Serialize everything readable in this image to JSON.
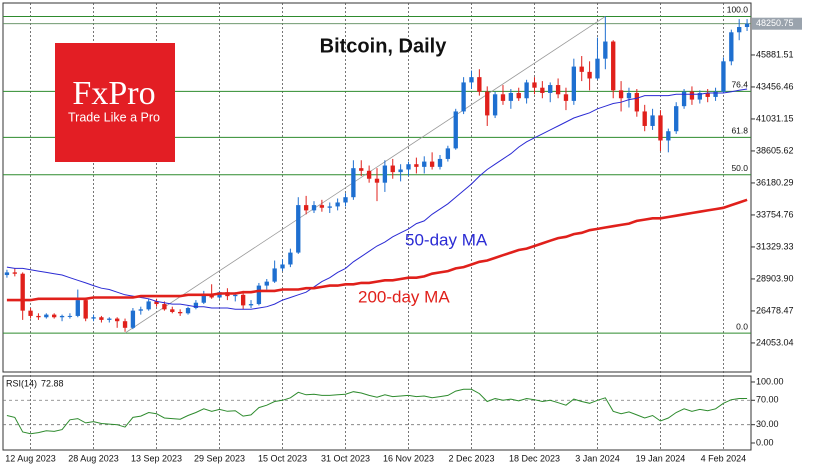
{
  "chart_data": {
    "type": "candlestick",
    "title": "Bitcoin, Daily",
    "logo": {
      "brand": "FxPro",
      "slogan": "Trade Like a Pro"
    },
    "up_color": "#1e6fd0",
    "down_color": "#e0201b",
    "ylim": [
      21850,
      49820
    ],
    "yticks": [
      45881.51,
      43456.46,
      41031.15,
      38605.62,
      36180.29,
      33754.76,
      31329.33,
      {
        "value": 28903.9,
        "label": "28903.90"
      },
      26478.47,
      24053.04
    ],
    "categories": [
      null,
      null,
      null,
      "12 Aug 2023",
      null,
      null,
      null,
      null,
      null,
      null,
      null,
      "28 Aug 2023",
      null,
      null,
      null,
      null,
      null,
      null,
      null,
      "13 Sep 2023",
      null,
      null,
      null,
      null,
      null,
      null,
      null,
      "29 Sep 2023",
      null,
      null,
      null,
      null,
      null,
      null,
      null,
      "15 Oct 2023",
      null,
      null,
      null,
      null,
      null,
      null,
      null,
      "31 Oct 2023",
      null,
      null,
      null,
      null,
      null,
      null,
      null,
      "16 Nov 2023",
      null,
      null,
      null,
      null,
      null,
      null,
      null,
      "2 Dec 2023",
      null,
      null,
      null,
      null,
      null,
      null,
      null,
      "18 Dec 2023",
      null,
      null,
      null,
      null,
      null,
      null,
      null,
      "3 Jan 2024",
      null,
      null,
      null,
      null,
      null,
      null,
      null,
      "19 Jan 2024",
      null,
      null,
      null,
      null,
      null,
      null,
      null,
      "4 Feb 2024",
      null,
      null,
      null
    ],
    "open": [
      29200,
      29400,
      29300,
      26500,
      26100,
      26000,
      26200,
      26000,
      26100,
      26100,
      27300,
      25900,
      26000,
      25800,
      25900,
      25700,
      25200,
      26500,
      26600,
      27200,
      27000,
      26600,
      26400,
      26300,
      26700,
      27100,
      27800,
      27500,
      27900,
      27600,
      27700,
      26900,
      27000,
      28400,
      28700,
      29700,
      30000,
      30900,
      34500,
      34100,
      34500,
      34300,
      34400,
      34700,
      35100,
      37300,
      37100,
      36500,
      36200,
      37500,
      37000,
      37200,
      37600,
      37400,
      37800,
      37400,
      38000,
      38800,
      41600,
      43800,
      44200,
      43100,
      41300,
      42900,
      42400,
      43000,
      42600,
      43800,
      43400,
      43000,
      43600,
      42900,
      42400,
      45000,
      44600,
      44100,
      45600,
      46900,
      43200,
      42600,
      43000,
      41600,
      40500,
      41300,
      39400,
      40100,
      42000,
      43100,
      42500,
      43000,
      42700,
      43100,
      45400,
      47600,
      48000
    ],
    "high": [
      29600,
      29700,
      29400,
      26700,
      26300,
      26300,
      26300,
      26200,
      26300,
      28100,
      27500,
      26200,
      26100,
      26000,
      26000,
      25900,
      26700,
      26800,
      27400,
      27400,
      27200,
      26800,
      26600,
      26800,
      27300,
      28000,
      28500,
      28000,
      28200,
      27900,
      28000,
      27300,
      28600,
      28900,
      30300,
      30400,
      31200,
      35100,
      35200,
      34800,
      34900,
      34700,
      35000,
      35400,
      37900,
      37900,
      37500,
      37300,
      37900,
      38000,
      37600,
      37800,
      38100,
      38200,
      38500,
      38300,
      39000,
      41800,
      44200,
      44700,
      44800,
      43500,
      43100,
      43600,
      43300,
      43400,
      44000,
      44200,
      43900,
      43800,
      44100,
      43400,
      45600,
      45800,
      45400,
      47200,
      48800,
      47000,
      43900,
      43400,
      43300,
      42100,
      41800,
      41700,
      40300,
      42300,
      43300,
      43500,
      43200,
      43300,
      43400,
      45700,
      47800,
      48600,
      48600
    ],
    "low": [
      29000,
      29100,
      25800,
      25900,
      25800,
      25900,
      25900,
      25700,
      25900,
      26000,
      25700,
      25700,
      25600,
      25600,
      25200,
      24900,
      25100,
      26200,
      26500,
      26800,
      26500,
      26300,
      26100,
      26200,
      26600,
      27000,
      27400,
      27400,
      27300,
      27200,
      26600,
      26700,
      26900,
      28100,
      28600,
      29500,
      29800,
      30800,
      33800,
      33900,
      34000,
      33900,
      34100,
      34400,
      34900,
      36700,
      36200,
      34800,
      35500,
      36500,
      36300,
      36700,
      36900,
      36900,
      37200,
      37200,
      37800,
      38700,
      41400,
      43300,
      42800,
      40500,
      41100,
      42100,
      41800,
      42400,
      42200,
      42900,
      42600,
      42300,
      42600,
      41700,
      42100,
      43900,
      43200,
      44000,
      44800,
      42600,
      41600,
      41900,
      41200,
      40100,
      40200,
      38600,
      38500,
      39900,
      41800,
      42100,
      42200,
      42300,
      42400,
      43000,
      45100,
      47000,
      47700
    ],
    "close": [
      29400,
      29300,
      26500,
      26100,
      26000,
      26200,
      26000,
      26100,
      26100,
      27300,
      25900,
      26000,
      25800,
      25900,
      25700,
      25200,
      26500,
      26600,
      27200,
      27000,
      26600,
      26400,
      26300,
      26700,
      27100,
      27800,
      27500,
      27900,
      27600,
      27700,
      26900,
      27000,
      28400,
      28700,
      29700,
      30000,
      30900,
      34500,
      34100,
      34500,
      34300,
      34400,
      34700,
      35100,
      37300,
      37100,
      36500,
      36200,
      37500,
      37000,
      37200,
      37600,
      37400,
      37800,
      37400,
      38000,
      38800,
      41600,
      43800,
      44200,
      43100,
      41300,
      42900,
      42400,
      43000,
      42600,
      43800,
      43400,
      43000,
      43600,
      42900,
      42400,
      45000,
      44600,
      44100,
      45600,
      46900,
      43200,
      42600,
      43000,
      41600,
      40500,
      41300,
      39400,
      40100,
      42000,
      43100,
      42500,
      43000,
      42700,
      43100,
      45400,
      47600,
      48000,
      48250.75
    ],
    "series": [
      {
        "name": "50-day MA",
        "color": "#2b2bd4",
        "values": [
          29800,
          29700,
          29700,
          29600,
          29500,
          29400,
          29300,
          29200,
          29000,
          28800,
          28600,
          28400,
          28200,
          28100,
          27900,
          27700,
          27600,
          27500,
          27400,
          27200,
          27100,
          27000,
          27000,
          26900,
          26800,
          26800,
          26700,
          26700,
          26700,
          26600,
          26600,
          26600,
          26700,
          26800,
          27000,
          27300,
          27500,
          27700,
          27900,
          28300,
          28700,
          29000,
          29400,
          29700,
          30200,
          30600,
          31000,
          31400,
          31700,
          32100,
          32400,
          32700,
          33100,
          33300,
          33800,
          34200,
          34600,
          35100,
          35600,
          36100,
          36700,
          37200,
          37600,
          38000,
          38400,
          38900,
          39300,
          39600,
          39900,
          40200,
          40500,
          40800,
          41100,
          41300,
          41500,
          41800,
          42000,
          42200,
          42300,
          42500,
          42600,
          42800,
          42800,
          42800,
          42800,
          42900,
          42900,
          42900,
          42900,
          43000,
          43000,
          43000,
          43100,
          43200,
          43300
        ]
      },
      {
        "name": "200-day MA",
        "color": "#e0201b",
        "values": [
          27300,
          27300,
          27300,
          27300,
          27400,
          27400,
          27400,
          27400,
          27400,
          27400,
          27400,
          27500,
          27500,
          27500,
          27500,
          27500,
          27500,
          27600,
          27600,
          27600,
          27600,
          27600,
          27600,
          27700,
          27700,
          27700,
          27700,
          27800,
          27800,
          27800,
          27900,
          27900,
          28000,
          28000,
          28000,
          28100,
          28100,
          28100,
          28200,
          28200,
          28300,
          28400,
          28400,
          28500,
          28500,
          28600,
          28600,
          28700,
          28800,
          28800,
          28900,
          29000,
          29000,
          29100,
          29300,
          29400,
          29500,
          29700,
          29800,
          30000,
          30200,
          30300,
          30500,
          30700,
          30900,
          31100,
          31200,
          31400,
          31600,
          31800,
          32000,
          32100,
          32300,
          32400,
          32600,
          32700,
          32800,
          32900,
          33000,
          33100,
          33300,
          33400,
          33500,
          33500,
          33600,
          33700,
          33800,
          33900,
          34000,
          34100,
          34200,
          34300,
          34500,
          34700,
          34900
        ]
      }
    ],
    "fib_color": "#2e8b2e",
    "fib_levels": [
      {
        "label": "100.0",
        "value": 48800
      },
      {
        "label": "76.4",
        "value": 43120
      },
      {
        "label": "61.8",
        "value": 39630
      },
      {
        "label": "50.0",
        "value": 36800
      },
      {
        "label": "0.0",
        "value": 24800
      }
    ],
    "rsi": {
      "name": "RSI(14)",
      "color": "#2e8b2e",
      "ylim": [
        -11.5,
        109.8
      ],
      "yticks": [
        {
          "value": 100,
          "label": "100.00"
        },
        {
          "value": 70,
          "label": "70.00"
        },
        {
          "value": 30,
          "label": "30.00"
        },
        {
          "value": 0,
          "label": "0.00"
        }
      ],
      "values": [
        45,
        42,
        18,
        15,
        17,
        20,
        19,
        22,
        38,
        40,
        33,
        35,
        32,
        31,
        30,
        26,
        42,
        44,
        50,
        48,
        41,
        40,
        39,
        45,
        50,
        56,
        52,
        55,
        52,
        53,
        44,
        46,
        58,
        62,
        68,
        70,
        74,
        83,
        79,
        80,
        78,
        78,
        79,
        80,
        84,
        82,
        78,
        75,
        79,
        76,
        77,
        78,
        76,
        77,
        74,
        76,
        78,
        85,
        88,
        88,
        81,
        68,
        73,
        70,
        72,
        69,
        73,
        71,
        68,
        70,
        66,
        62,
        72,
        68,
        65,
        70,
        74,
        52,
        48,
        51,
        46,
        41,
        45,
        36,
        41,
        50,
        56,
        52,
        55,
        53,
        56,
        65,
        71,
        73,
        72.88
      ]
    }
  }
}
